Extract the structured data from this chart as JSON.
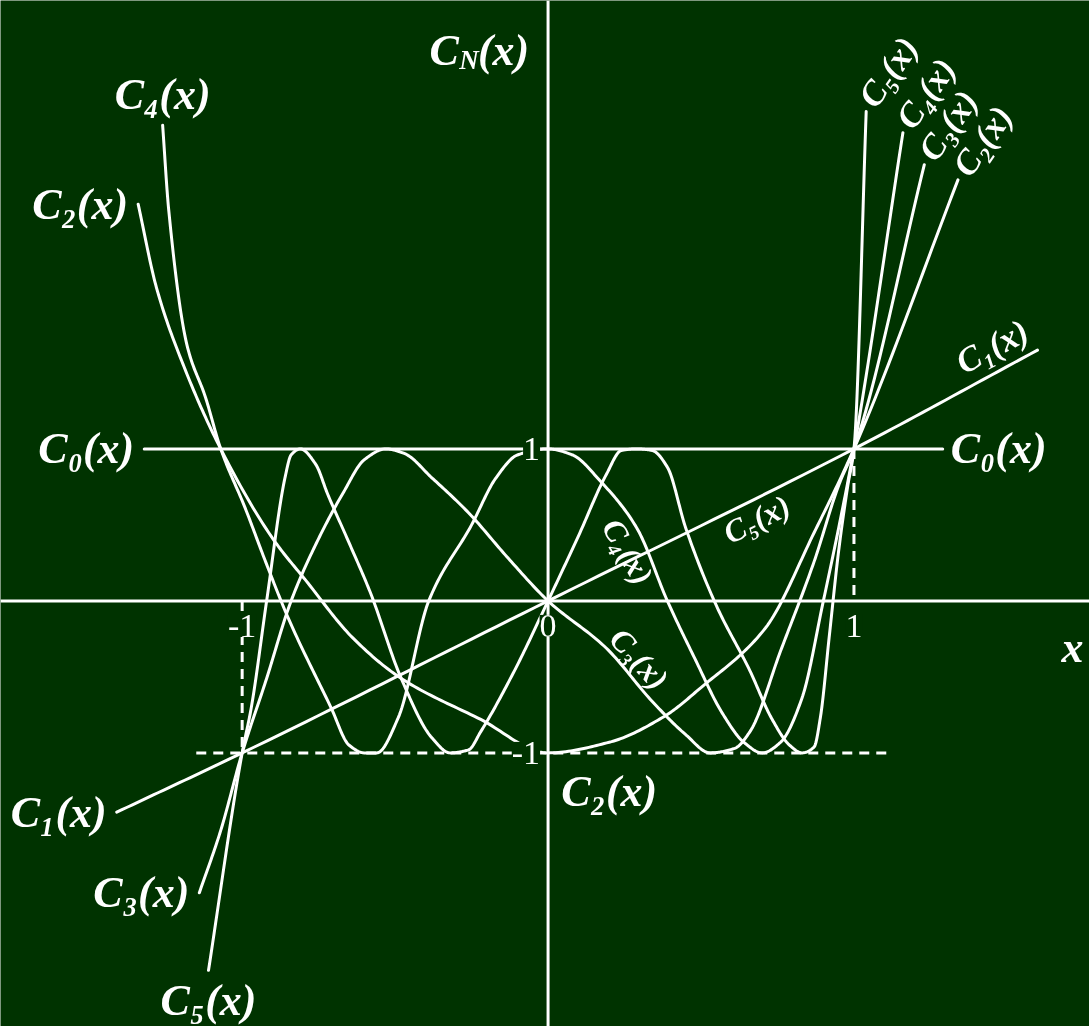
{
  "chart_data": {
    "type": "line",
    "xlabel": "x",
    "ylabel": "C$_{N}$(x)",
    "xlim": [
      -1.79,
      1.77
    ],
    "ylim": [
      -2.8,
      3.95
    ],
    "xticks": [
      -1,
      0,
      1
    ],
    "yticks": [
      -1,
      1
    ],
    "series": [
      {
        "name": "C₀(x)",
        "color": "#ffffff",
        "x": [
          -1.32,
          1.29
        ],
        "values": [
          1,
          1
        ]
      },
      {
        "name": "C₁(x)",
        "color": "#ffffff",
        "x": [
          -1.41,
          -1,
          0,
          1,
          1.6
        ],
        "values": [
          -1.39,
          -1,
          0,
          1,
          1.65
        ]
      },
      {
        "name": "C₂(x)",
        "color": "#ffffff",
        "x": [
          -1.34,
          -1.28,
          -1.19,
          -1.07,
          -0.9,
          -0.79,
          -0.64,
          -0.48,
          -0.22,
          0,
          0.2,
          0.38,
          0.5,
          0.71,
          0.87,
          1,
          1.34
        ],
        "values": [
          2.61,
          2.06,
          1.54,
          1,
          0.41,
          0.13,
          -0.24,
          -0.51,
          -0.78,
          -1,
          -0.93,
          -0.76,
          -0.57,
          -0.18,
          0.45,
          1,
          2.77
        ]
      },
      {
        "name": "C₃(x)",
        "color": "#ffffff",
        "x": [
          -1.14,
          -1.07,
          -1,
          -0.92,
          -0.84,
          -0.75,
          -0.67,
          -0.6,
          -0.53,
          -0.47,
          -0.38,
          -0.26,
          -0.13,
          0,
          0.19,
          0.34,
          0.45,
          0.53,
          0.61,
          0.66,
          0.76,
          0.87,
          0.95,
          1,
          1.23
        ],
        "values": [
          -1.92,
          -1.51,
          -1,
          -0.51,
          0,
          0.41,
          0.71,
          0.93,
          1,
          0.97,
          0.81,
          0.58,
          0.28,
          0,
          -0.31,
          -0.66,
          -0.88,
          -1,
          -0.97,
          -0.86,
          -0.33,
          0.26,
          0.76,
          1,
          2.87
        ]
      },
      {
        "name": "C₄(x)",
        "color": "#ffffff",
        "x": [
          -1.26,
          -1.24,
          -1.18,
          -1.12,
          -1.07,
          -0.99,
          -0.92,
          -0.85,
          -0.71,
          -0.65,
          -0.6,
          -0.56,
          -0.49,
          -0.39,
          -0.25,
          -0.17,
          -0.1,
          0,
          0.08,
          0.17,
          0.29,
          0.39,
          0.48,
          0.57,
          0.64,
          0.7,
          0.76,
          0.83,
          0.9,
          0.95,
          1,
          1.16
        ],
        "values": [
          3.13,
          2.57,
          1.68,
          1.34,
          1,
          0.61,
          0.24,
          -0.11,
          -0.7,
          -0.95,
          -1,
          -1,
          -0.77,
          0,
          0.5,
          0.81,
          0.96,
          1,
          0.96,
          0.79,
          0.48,
          0,
          -0.38,
          -0.74,
          -0.93,
          -1,
          -0.93,
          -0.64,
          0,
          0.48,
          1,
          3.08
        ]
      },
      {
        "name": "C₅(x)",
        "color": "#ffffff",
        "x": [
          -1.11,
          -1,
          -0.97,
          -0.92,
          -0.86,
          -0.84,
          -0.81,
          -0.76,
          -0.72,
          -0.65,
          -0.58,
          -0.48,
          -0.38,
          -0.32,
          -0.26,
          -0.22,
          -0.11,
          0,
          0.1,
          0.19,
          0.24,
          0.29,
          0.34,
          0.39,
          0.45,
          0.55,
          0.66,
          0.73,
          0.79,
          0.83,
          0.87,
          0.89,
          0.92,
          0.95,
          0.98,
          1,
          1.04
        ],
        "values": [
          -2.43,
          -1,
          -0.7,
          0,
          0.81,
          0.96,
          1,
          0.9,
          0.7,
          0.38,
          0.05,
          -0.51,
          -0.9,
          -1,
          -0.98,
          -0.86,
          -0.46,
          0,
          0.43,
          0.83,
          0.99,
          1,
          0.99,
          0.88,
          0.48,
          -0.03,
          -0.46,
          -0.77,
          -0.95,
          -1,
          -0.96,
          -0.77,
          -0.22,
          0.33,
          0.76,
          1,
          3.22
        ]
      },
      {
        "color": "#ffffff",
        "line_style": "dashed",
        "x": [
          -1.15,
          1.12
        ],
        "values": [
          -1,
          -1
        ]
      },
      {
        "color": "#ffffff",
        "line_style": "dashed",
        "x": [
          -1,
          -1
        ],
        "values": [
          0,
          -1
        ]
      },
      {
        "color": "#ffffff",
        "line_style": "dashed",
        "x": [
          1,
          1
        ],
        "values": [
          1,
          0
        ]
      }
    ],
    "annotations": [
      {
        "text": "C₀(x)",
        "x": -1.32,
        "y": 1
      },
      {
        "text": "C₁(x)",
        "x": -1.41,
        "y": -1.39
      },
      {
        "text": "C₂(x)",
        "x": -1.34,
        "y": 2.61
      },
      {
        "text": "C₄(x)",
        "x": -1.26,
        "y": 3.13
      },
      {
        "text": "C₃(x)",
        "x": -1.14,
        "y": -1.92
      },
      {
        "text": "C₅(x)",
        "x": -1.11,
        "y": -2.43
      },
      {
        "text": "C₄(x)",
        "x": 0.29,
        "y": 0.48
      },
      {
        "text": "C₃(x)",
        "x": 0.34,
        "y": -0.66
      },
      {
        "text": "C₅(x)",
        "x": 0.7,
        "y": 0.7
      },
      {
        "text": "C₂(x)",
        "x": 0.2,
        "y": -1
      }
    ]
  }
}
